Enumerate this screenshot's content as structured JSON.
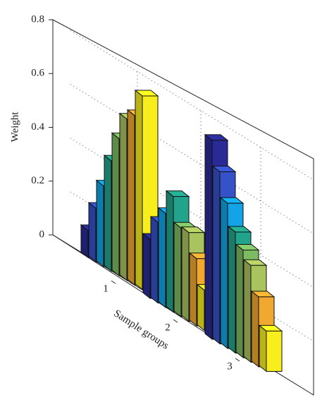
{
  "chart_data": {
    "type": "bar3d",
    "ylabel": "Weight",
    "xlabel": "Sample groups",
    "categories": [
      "1",
      "2",
      "3"
    ],
    "ylim": [
      0,
      0.8
    ],
    "yticks": [
      0,
      0.2,
      0.4,
      0.6,
      0.8
    ],
    "grid": true,
    "series": [
      {
        "color": "#2a2a96",
        "values": [
          0.1,
          0.22,
          0.74
        ]
      },
      {
        "color": "#3552c8",
        "values": [
          0.2,
          0.3,
          0.64
        ]
      },
      {
        "color": "#12a4e6",
        "values": [
          0.3,
          0.35,
          0.54
        ]
      },
      {
        "color": "#22a48c",
        "values": [
          0.41,
          0.43,
          0.45
        ]
      },
      {
        "color": "#7cbb62",
        "values": [
          0.51,
          0.33,
          0.4
        ]
      },
      {
        "color": "#a9c35e",
        "values": [
          0.6,
          0.33,
          0.36
        ]
      },
      {
        "color": "#f0a830",
        "values": [
          0.63,
          0.25,
          0.26
        ]
      },
      {
        "color": "#f8ee1e",
        "values": [
          0.72,
          0.15,
          0.15
        ]
      }
    ]
  }
}
